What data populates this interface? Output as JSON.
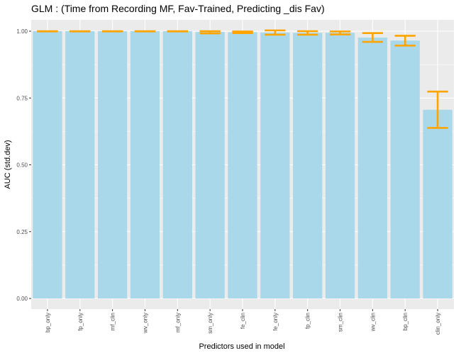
{
  "chart_data": {
    "type": "bar",
    "title": "GLM : (Time from Recording MF, Fav-Trained, Predicting _dis Fav)",
    "xlabel": "Predictors used in model",
    "ylabel": "AUC (std.dev)",
    "ylim": [
      0,
      1.05
    ],
    "yticks": [
      "0.00",
      "0.25",
      "0.50",
      "0.75",
      "1.00"
    ],
    "categories": [
      "bp_only",
      "fp_only",
      "mf_clin",
      "wv_only",
      "mf_only",
      "sm_only",
      "fe_clin",
      "fe_only",
      "fp_clin",
      "sm_clin",
      "wv_clin",
      "bp_clin",
      "clin_only"
    ],
    "values": [
      1.0,
      1.0,
      1.0,
      1.0,
      1.0,
      0.997,
      0.996,
      0.995,
      0.994,
      0.994,
      0.976,
      0.965,
      0.706
    ],
    "error_low": [
      0.999,
      0.999,
      0.999,
      0.999,
      0.999,
      0.992,
      0.993,
      0.987,
      0.987,
      0.988,
      0.96,
      0.946,
      0.638
    ],
    "error_high": [
      1.0,
      1.0,
      1.0,
      1.0,
      1.0,
      1.0,
      0.999,
      1.003,
      1.0,
      0.999,
      0.993,
      0.983,
      0.774
    ],
    "bar_color": "#a8d8ea",
    "error_color": "#ffa500",
    "panel_background": "#ebebeb",
    "grid": true,
    "legend": "none"
  }
}
